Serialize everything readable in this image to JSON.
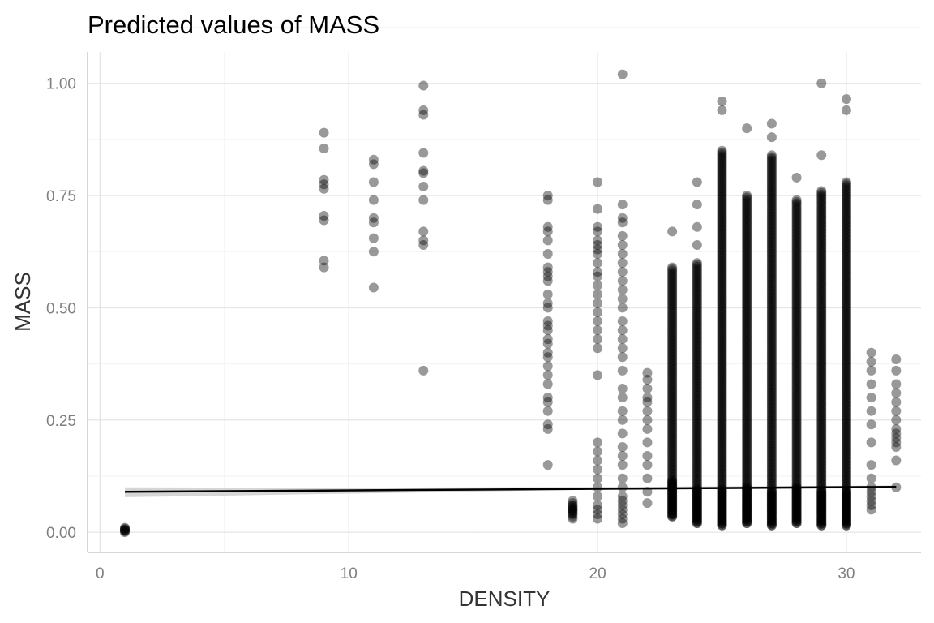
{
  "chart_data": {
    "type": "scatter",
    "title": "Predicted values of MASS",
    "xlabel": "DENSITY",
    "ylabel": "MASS",
    "xlim": [
      -0.5,
      33
    ],
    "ylim": [
      -0.045,
      1.07
    ],
    "x_ticks": [
      0,
      10,
      20,
      30
    ],
    "x_tick_labels": [
      "0",
      "10",
      "20",
      "30"
    ],
    "y_ticks": [
      0,
      0.25,
      0.5,
      0.75,
      1.0
    ],
    "y_tick_labels": [
      "0.00",
      "0.25",
      "0.50",
      "0.75",
      "1.00"
    ],
    "grid": true,
    "legend": "none",
    "colors": {
      "points": "#000000",
      "prediction_line": "#000000",
      "confidence_band": "#cfcfcf",
      "grid_major": "#e5e5e5",
      "grid_minor": "#f2f2f2"
    },
    "point_opacity": 0.4,
    "points": [
      {
        "x": 1,
        "values": [
          0.0,
          0.002,
          0.004,
          0.005,
          0.006,
          0.008,
          0.01
        ]
      },
      {
        "x": 9,
        "values": [
          0.59,
          0.605,
          0.695,
          0.705,
          0.765,
          0.775,
          0.785,
          0.855,
          0.89
        ]
      },
      {
        "x": 11,
        "values": [
          0.545,
          0.625,
          0.655,
          0.69,
          0.7,
          0.74,
          0.78,
          0.82,
          0.83
        ]
      },
      {
        "x": 13,
        "values": [
          0.36,
          0.64,
          0.65,
          0.67,
          0.74,
          0.77,
          0.8,
          0.805,
          0.845,
          0.93,
          0.94,
          0.995
        ]
      },
      {
        "x": 18,
        "values": [
          0.15,
          0.23,
          0.24,
          0.27,
          0.29,
          0.3,
          0.33,
          0.35,
          0.37,
          0.39,
          0.4,
          0.42,
          0.43,
          0.45,
          0.46,
          0.47,
          0.5,
          0.51,
          0.53,
          0.56,
          0.57,
          0.58,
          0.59,
          0.62,
          0.65,
          0.67,
          0.68,
          0.74,
          0.75
        ]
      },
      {
        "x": 19,
        "values": [
          0.03,
          0.035,
          0.04,
          0.042,
          0.045,
          0.048,
          0.05,
          0.052,
          0.055,
          0.058,
          0.06,
          0.065,
          0.07
        ]
      },
      {
        "x": 20,
        "values": [
          0.03,
          0.04,
          0.05,
          0.06,
          0.08,
          0.1,
          0.12,
          0.14,
          0.16,
          0.18,
          0.2,
          0.35,
          0.41,
          0.43,
          0.45,
          0.47,
          0.49,
          0.51,
          0.53,
          0.55,
          0.57,
          0.58,
          0.6,
          0.62,
          0.63,
          0.64,
          0.65,
          0.67,
          0.68,
          0.72,
          0.78
        ]
      },
      {
        "x": 21,
        "values": [
          0.02,
          0.03,
          0.04,
          0.05,
          0.06,
          0.07,
          0.08,
          0.1,
          0.12,
          0.15,
          0.17,
          0.19,
          0.22,
          0.25,
          0.27,
          0.3,
          0.32,
          0.36,
          0.39,
          0.41,
          0.43,
          0.45,
          0.47,
          0.5,
          0.52,
          0.54,
          0.56,
          0.58,
          0.6,
          0.62,
          0.64,
          0.66,
          0.69,
          0.7,
          0.73,
          1.02
        ]
      },
      {
        "x": 22,
        "values": [
          0.065,
          0.09,
          0.12,
          0.15,
          0.17,
          0.2,
          0.23,
          0.25,
          0.27,
          0.29,
          0.3,
          0.32,
          0.34,
          0.355
        ]
      },
      {
        "x": 31,
        "values": [
          0.05,
          0.06,
          0.07,
          0.08,
          0.09,
          0.1,
          0.12,
          0.15,
          0.2,
          0.24,
          0.27,
          0.3,
          0.33,
          0.36,
          0.38,
          0.4
        ]
      },
      {
        "x": 32,
        "values": [
          0.1,
          0.16,
          0.19,
          0.2,
          0.21,
          0.22,
          0.23,
          0.25,
          0.27,
          0.29,
          0.31,
          0.33,
          0.36,
          0.385
        ]
      }
    ],
    "dense_columns": [
      {
        "x": 23,
        "min": 0.035,
        "max": 0.59,
        "extra": [
          0.67
        ]
      },
      {
        "x": 24,
        "min": 0.02,
        "max": 0.6,
        "extra": [
          0.64,
          0.68,
          0.73,
          0.78
        ]
      },
      {
        "x": 25,
        "min": 0.015,
        "max": 0.85,
        "extra": [
          0.94,
          0.96
        ]
      },
      {
        "x": 26,
        "min": 0.02,
        "max": 0.75,
        "extra": [
          0.9
        ]
      },
      {
        "x": 27,
        "min": 0.015,
        "max": 0.84,
        "extra": [
          0.88,
          0.91
        ]
      },
      {
        "x": 28,
        "min": 0.02,
        "max": 0.74,
        "extra": [
          0.79
        ]
      },
      {
        "x": 29,
        "min": 0.015,
        "max": 0.76,
        "extra": [
          0.84,
          1.0
        ]
      },
      {
        "x": 30,
        "min": 0.015,
        "max": 0.78,
        "extra": [
          0.94,
          0.965
        ]
      }
    ],
    "prediction_line": {
      "x": [
        1,
        32
      ],
      "y": [
        0.09,
        0.101
      ]
    },
    "confidence_band": {
      "x": [
        1,
        10,
        20,
        32
      ],
      "lower": [
        0.078,
        0.086,
        0.095,
        0.098
      ],
      "upper": [
        0.1,
        0.099,
        0.101,
        0.104
      ]
    }
  }
}
